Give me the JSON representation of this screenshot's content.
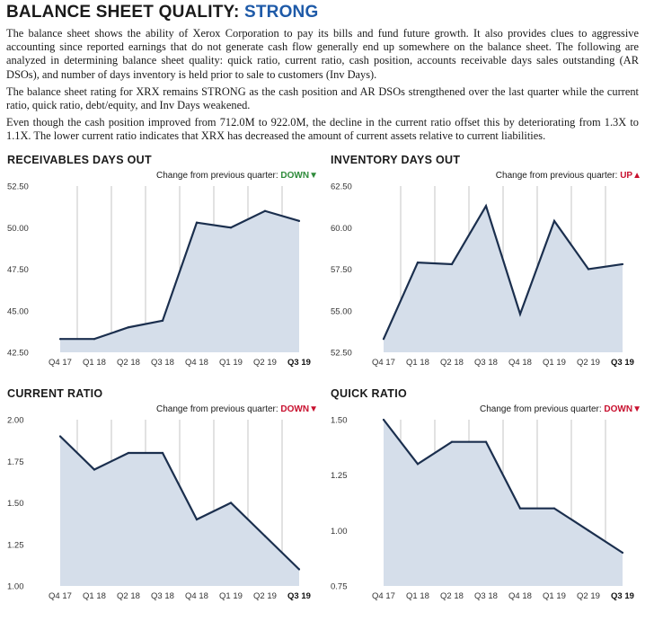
{
  "header": {
    "title_prefix": "BALANCE SHEET QUALITY: ",
    "rating": "STRONG",
    "paragraphs": [
      "The balance sheet shows the ability of Xerox Corporation to pay its bills and fund future growth. It also provides clues to aggressive accounting since reported earnings that do not generate cash flow generally end up somewhere on the balance sheet. The following are analyzed in determining balance sheet quality: quick ratio, current ratio, cash position, accounts receivable days sales outstanding (AR DSOs), and number of days inventory is held prior to sale to customers (Inv Days).",
      "The balance sheet rating for XRX remains STRONG as the cash position and AR DSOs strengthened over the last quarter while the current ratio, quick ratio, debt/equity, and Inv Days weakened.",
      "Even though the cash position improved from 712.0M to 922.0M, the decline in the current ratio offset this by deteriorating from 1.3X to 1.1X. The lower current ratio indicates that XRX has decreased the amount of current assets relative to current liabilities."
    ]
  },
  "colors": {
    "rating": "#1e5aa8",
    "line": "#1b2f4e",
    "fill": "#d5deea",
    "grid": "#b8b8b8",
    "down": "#2e8b3a",
    "down_bad": "#c8102e",
    "up": "#c8102e"
  },
  "chart_data": [
    {
      "id": "receivables",
      "type": "area",
      "title": "RECEIVABLES DAYS OUT",
      "change_label": "Change from previous quarter: ",
      "change_direction": "DOWN",
      "change_symbol": "▼",
      "change_color": "#2e8b3a",
      "categories": [
        "Q4 17",
        "Q1 18",
        "Q2 18",
        "Q3 18",
        "Q4 18",
        "Q1 19",
        "Q2 19",
        "Q3 19"
      ],
      "bold_category": "Q3 19",
      "values": [
        43.3,
        43.3,
        44.0,
        44.4,
        50.3,
        50.0,
        51.0,
        50.4
      ],
      "ylim": [
        42.5,
        52.5
      ],
      "yticks": [
        "42.50",
        "45.00",
        "47.50",
        "50.00",
        "52.50"
      ],
      "grid": true
    },
    {
      "id": "inventory",
      "type": "area",
      "title": "INVENTORY DAYS OUT",
      "change_label": "Change from previous quarter: ",
      "change_direction": "UP",
      "change_symbol": "▲",
      "change_color": "#c8102e",
      "categories": [
        "Q4 17",
        "Q1 18",
        "Q2 18",
        "Q3 18",
        "Q4 18",
        "Q1 19",
        "Q2 19",
        "Q3 19"
      ],
      "bold_category": "Q3 19",
      "values": [
        53.3,
        57.9,
        57.8,
        61.3,
        54.8,
        60.4,
        57.5,
        57.8
      ],
      "ylim": [
        52.5,
        62.5
      ],
      "yticks": [
        "52.50",
        "55.00",
        "57.50",
        "60.00",
        "62.50"
      ],
      "grid": true
    },
    {
      "id": "current",
      "type": "area",
      "title": "CURRENT RATIO",
      "change_label": "Change from previous quarter: ",
      "change_direction": "DOWN",
      "change_symbol": "▼",
      "change_color": "#c8102e",
      "categories": [
        "Q4 17",
        "Q1 18",
        "Q2 18",
        "Q3 18",
        "Q4 18",
        "Q1 19",
        "Q2 19",
        "Q3 19"
      ],
      "bold_category": "Q3 19",
      "values": [
        1.9,
        1.7,
        1.8,
        1.8,
        1.4,
        1.5,
        1.3,
        1.1
      ],
      "ylim": [
        1.0,
        2.0
      ],
      "yticks": [
        "1.00",
        "1.25",
        "1.50",
        "1.75",
        "2.00"
      ],
      "grid": true
    },
    {
      "id": "quick",
      "type": "area",
      "title": "QUICK RATIO",
      "change_label": "Change from previous quarter: ",
      "change_direction": "DOWN",
      "change_symbol": "▼",
      "change_color": "#c8102e",
      "categories": [
        "Q4 17",
        "Q1 18",
        "Q2 18",
        "Q3 18",
        "Q4 18",
        "Q1 19",
        "Q2 19",
        "Q3 19"
      ],
      "bold_category": "Q3 19",
      "values": [
        1.5,
        1.3,
        1.4,
        1.4,
        1.1,
        1.1,
        1.0,
        0.9
      ],
      "ylim": [
        0.75,
        1.5
      ],
      "yticks": [
        "0.75",
        "1.00",
        "1.25",
        "1.50"
      ],
      "grid": true
    }
  ]
}
